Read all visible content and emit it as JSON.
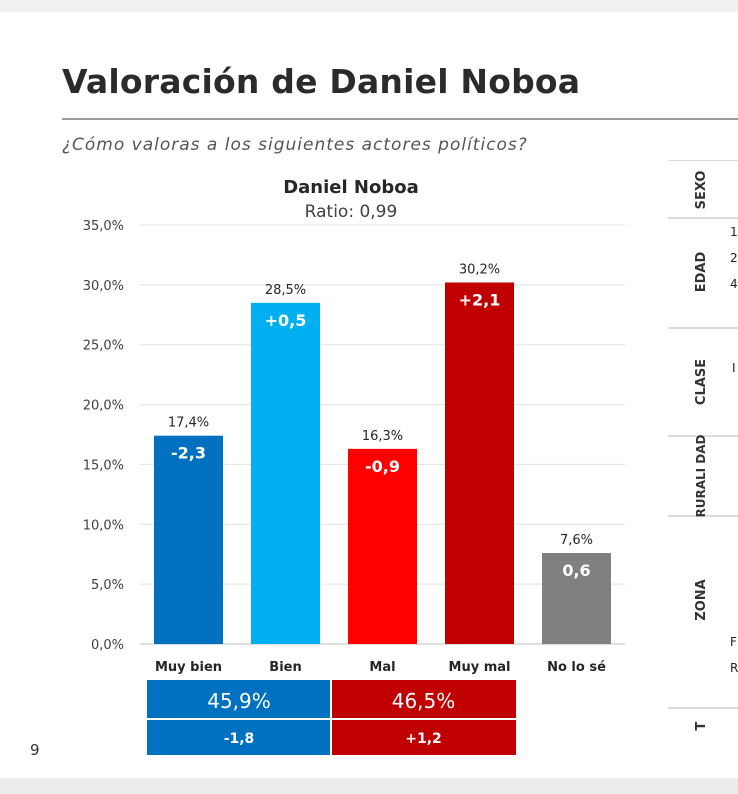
{
  "page": {
    "title": "Valoración de Daniel Noboa",
    "question": "¿Cómo valoras a los siguientes actores políticos?",
    "page_number": "9"
  },
  "chart_data": {
    "type": "bar",
    "title": "Daniel Noboa",
    "subtitle": "Ratio: 0,99",
    "categories": [
      "Muy bien",
      "Bien",
      "Mal",
      "Muy mal",
      "No lo sé"
    ],
    "values": [
      17.4,
      28.5,
      16.3,
      30.2,
      7.6
    ],
    "value_labels": [
      "17,4%",
      "28,5%",
      "16,3%",
      "30,2%",
      "7,6%"
    ],
    "change_labels": [
      "-2,3",
      "+0,5",
      "-0,9",
      "+2,1",
      "0,6"
    ],
    "bar_colors": [
      "#0070C0",
      "#00B0F0",
      "#FF0000",
      "#C00000",
      "#808080"
    ],
    "ylim": [
      0,
      35
    ],
    "yticks": [
      0,
      5,
      10,
      15,
      20,
      25,
      30,
      35
    ],
    "ytick_labels": [
      "0,0%",
      "5,0%",
      "10,0%",
      "15,0%",
      "20,0%",
      "25,0%",
      "30,0%",
      "35,0%"
    ],
    "grid": true,
    "summary": {
      "positive": {
        "total": "45,9%",
        "change": "-1,8",
        "color": "#0070C0"
      },
      "negative": {
        "total": "46,5%",
        "change": "+1,2",
        "color": "#C00000"
      }
    }
  },
  "side_panel": {
    "labels": [
      "SEXO",
      "EDAD",
      "CLASE",
      "RURALI DAD",
      "ZONA",
      "T"
    ],
    "fragments": [
      "1",
      "2",
      "4",
      "I",
      "F",
      "R"
    ]
  }
}
